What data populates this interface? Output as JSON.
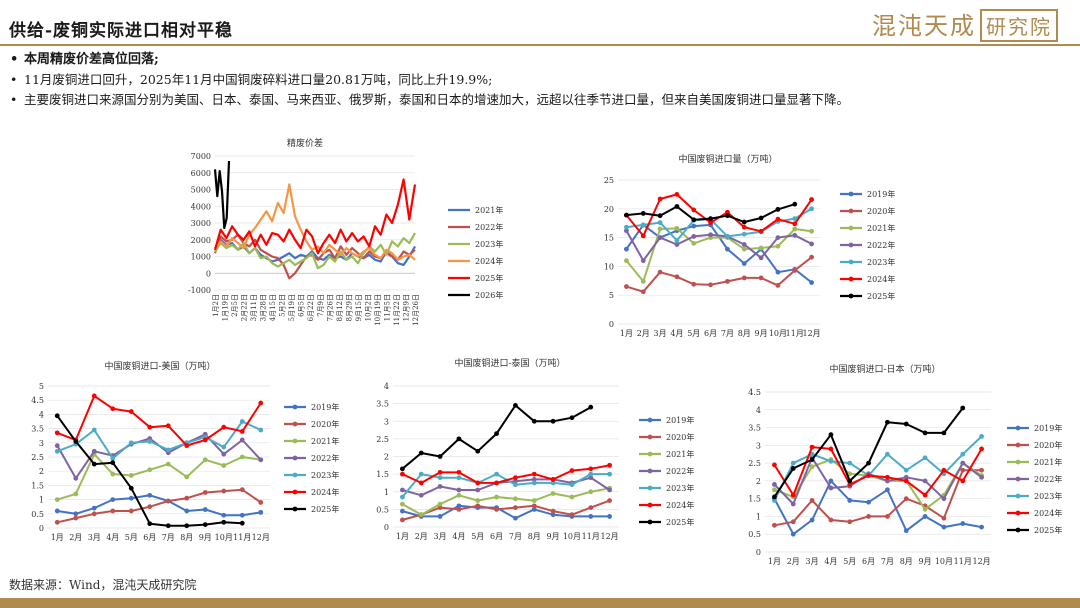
{
  "page": {
    "title": "供给-废铜实际进口相对平稳",
    "logo_text": "混沌天成",
    "logo_box": "研究院",
    "bullets": [
      "本周精废价差高位回落;",
      "11月废铜进口回升，2025年11月中国铜废碎料进口量20.81万吨，同比上升19.9%;",
      "主要废铜进口来源国分别为美国、日本、泰国、马来西亚、俄罗斯，泰国和日本的增速加大，远超以往季节进口量，但来自美国废铜进口量显著下降。"
    ],
    "source": "数据来源：Wind，混沌天成研究院"
  },
  "colors": {
    "brand": "#b08a4e"
  },
  "chart_data": [
    {
      "id": "spread",
      "type": "line",
      "title": "精废价差",
      "ylim": [
        -1000,
        7000
      ],
      "yticks": [
        -1000,
        0,
        1000,
        2000,
        3000,
        4000,
        5000,
        6000,
        7000
      ],
      "xlabels": [
        "1月2日",
        "1月19日",
        "2月5日",
        "2月22日",
        "3月11日",
        "3月28日",
        "4月15日",
        "5月2日",
        "5月19日",
        "6月5日",
        "6月22日",
        "7月9日",
        "7月26日",
        "8月12日",
        "8月29日",
        "9月15日",
        "10月2日",
        "10月19日",
        "11月5日",
        "11月22日",
        "12月9日",
        "12月26日"
      ],
      "series": [
        {
          "name": "2021年",
          "color": "#4472c4",
          "values": [
            1500,
            2000,
            1700,
            1800,
            1400,
            1600,
            1200,
            1500,
            1100,
            900,
            700,
            800,
            1000,
            1200,
            900,
            1100,
            1000,
            1300,
            900,
            800,
            1100,
            900,
            1000,
            800,
            1200,
            1000,
            900,
            1100,
            800,
            700,
            1300,
            1000,
            600,
            500,
            1000,
            1600
          ]
        },
        {
          "name": "2022年",
          "color": "#c0504d",
          "values": [
            1200,
            2200,
            1900,
            2000,
            2300,
            1800,
            1600,
            2000,
            1400,
            1200,
            1000,
            900,
            500,
            -300,
            0,
            500,
            1000,
            1100,
            800,
            1200,
            1400,
            900,
            1600,
            1100,
            1500,
            1200,
            900,
            1300,
            1000,
            900,
            1200,
            1000,
            800,
            1300,
            1100,
            1400
          ]
        },
        {
          "name": "2023年",
          "color": "#9bbb59",
          "values": [
            1300,
            1800,
            1500,
            1700,
            1400,
            1800,
            1200,
            1500,
            900,
            1000,
            600,
            400,
            600,
            800,
            500,
            700,
            900,
            1200,
            300,
            500,
            1000,
            700,
            1300,
            800,
            1000,
            600,
            1200,
            1600,
            1300,
            1700,
            1100,
            1900,
            1600,
            2100,
            1800,
            2400
          ]
        },
        {
          "name": "2024年",
          "color": "#f79646",
          "values": [
            1500,
            1900,
            1600,
            2100,
            1800,
            1500,
            2300,
            2700,
            3200,
            3700,
            3100,
            4200,
            3600,
            5300,
            3400,
            2600,
            1900,
            1400,
            1600,
            1200,
            1700,
            1400,
            1100,
            1500,
            1200,
            1000,
            1300,
            1500,
            1100,
            900,
            1400,
            1200,
            800,
            1000,
            1100,
            800
          ]
        },
        {
          "name": "2025年",
          "color": "#ff0000",
          "values": [
            1400,
            2600,
            2100,
            2800,
            2300,
            2000,
            2500,
            1600,
            2300,
            1700,
            2400,
            2300,
            1900,
            2600,
            2000,
            1500,
            2600,
            2200,
            1200,
            1800,
            2300,
            1800,
            2600,
            1900,
            2400,
            1900,
            2200,
            1600,
            2800,
            2300,
            3500,
            3000,
            4100,
            5600,
            3200,
            5300
          ]
        },
        {
          "name": "2026年",
          "color": "#000000",
          "values": [
            6200,
            4600,
            6100,
            4900,
            2700,
            3300,
            6700
          ]
        }
      ]
    },
    {
      "id": "total",
      "type": "line",
      "title": "中国废铜进口量（万吨）",
      "ylim": [
        0,
        25
      ],
      "yticks": [
        0,
        5,
        10,
        15,
        20,
        25
      ],
      "categories": [
        "1月",
        "2月",
        "3月",
        "4月",
        "5月",
        "6月",
        "7月",
        "8月",
        "9月",
        "10月",
        "11月",
        "12月"
      ],
      "series": [
        {
          "name": "2019年",
          "color": "#4472c4",
          "values": [
            13,
            17.2,
            15,
            16.2,
            17,
            17.2,
            13,
            10.5,
            13,
            9,
            9.5,
            7.2
          ]
        },
        {
          "name": "2020年",
          "color": "#c0504d",
          "values": [
            6.5,
            5.6,
            9,
            8.2,
            6.9,
            6.8,
            7.4,
            8,
            8,
            6.7,
            9.3,
            11.6
          ]
        },
        {
          "name": "2021年",
          "color": "#9bbb59",
          "values": [
            11,
            7.4,
            16.5,
            16.6,
            14,
            15,
            15,
            13,
            13.2,
            13.5,
            16.5,
            16.1
          ]
        },
        {
          "name": "2022年",
          "color": "#8064a2",
          "values": [
            16.2,
            11,
            15,
            13.8,
            15.2,
            15.5,
            15.2,
            13.8,
            11.5,
            15,
            15.4,
            13.9
          ]
        },
        {
          "name": "2023年",
          "color": "#4bacc6",
          "values": [
            16.8,
            17.2,
            17.6,
            14.5,
            18,
            18.2,
            15.2,
            15.6,
            16,
            17.8,
            18.3,
            20
          ]
        },
        {
          "name": "2024年",
          "color": "#ff0000",
          "values": [
            18.9,
            15.3,
            21.7,
            22.5,
            19.8,
            17.6,
            19.4,
            16.8,
            16.1,
            18.2,
            17.4,
            21.6
          ]
        },
        {
          "name": "2025年",
          "color": "#000000",
          "values": [
            18.9,
            19.2,
            18.8,
            20.4,
            18.1,
            18.3,
            18.8,
            17.7,
            18.4,
            19.9,
            20.8,
            null
          ]
        }
      ]
    },
    {
      "id": "usa",
      "type": "line",
      "title": "中国废铜进口-美国（万吨）",
      "ylim": [
        0,
        5
      ],
      "yticks": [
        0,
        0.5,
        1,
        1.5,
        2,
        2.5,
        3,
        3.5,
        4,
        4.5,
        5
      ],
      "categories": [
        "1月",
        "2月",
        "3月",
        "4月",
        "5月",
        "6月",
        "7月",
        "8月",
        "9月",
        "10月",
        "11月",
        "12月"
      ],
      "series": [
        {
          "name": "2019年",
          "color": "#4472c4",
          "values": [
            0.6,
            0.5,
            0.7,
            1.0,
            1.05,
            1.15,
            0.95,
            0.6,
            0.65,
            0.45,
            0.45,
            0.55
          ]
        },
        {
          "name": "2020年",
          "color": "#c0504d",
          "values": [
            0.2,
            0.35,
            0.5,
            0.6,
            0.6,
            0.75,
            0.95,
            1.05,
            1.25,
            1.3,
            1.35,
            0.9
          ]
        },
        {
          "name": "2021年",
          "color": "#9bbb59",
          "values": [
            1.0,
            1.2,
            2.6,
            1.9,
            1.85,
            2.05,
            2.25,
            1.8,
            2.4,
            2.2,
            2.5,
            2.4
          ]
        },
        {
          "name": "2022年",
          "color": "#8064a2",
          "values": [
            2.9,
            1.75,
            2.7,
            2.55,
            2.95,
            3.15,
            2.65,
            3.0,
            3.3,
            2.6,
            3.1,
            2.4
          ]
        },
        {
          "name": "2023年",
          "color": "#4bacc6",
          "values": [
            2.7,
            2.95,
            3.45,
            2.45,
            3.0,
            3.05,
            2.75,
            3.0,
            3.2,
            2.85,
            3.75,
            3.45
          ]
        },
        {
          "name": "2024年",
          "color": "#ff0000",
          "values": [
            3.35,
            3.1,
            4.65,
            4.2,
            4.1,
            3.55,
            3.6,
            2.9,
            3.1,
            3.55,
            3.4,
            4.4
          ]
        },
        {
          "name": "2025年",
          "color": "#000000",
          "values": [
            3.95,
            3.05,
            2.25,
            2.3,
            1.4,
            0.15,
            0.08,
            0.08,
            0.12,
            0.2,
            0.17,
            null
          ]
        }
      ]
    },
    {
      "id": "thailand",
      "type": "line",
      "title": "中国废铜进口-泰国（万吨）",
      "ylim": [
        0,
        4
      ],
      "yticks": [
        0,
        0.5,
        1,
        1.5,
        2,
        2.5,
        3,
        3.5,
        4
      ],
      "categories": [
        "1月",
        "2月",
        "3月",
        "4月",
        "5月",
        "6月",
        "7月",
        "8月",
        "9月",
        "10月",
        "11月",
        "12月"
      ],
      "series": [
        {
          "name": "2019年",
          "color": "#4472c4",
          "values": [
            0.45,
            0.3,
            0.3,
            0.6,
            0.55,
            0.55,
            0.25,
            0.5,
            0.35,
            0.3,
            0.3,
            0.3
          ]
        },
        {
          "name": "2020年",
          "color": "#c0504d",
          "values": [
            0.2,
            0.35,
            0.55,
            0.5,
            0.6,
            0.5,
            0.55,
            0.6,
            0.45,
            0.35,
            0.55,
            0.75
          ]
        },
        {
          "name": "2021年",
          "color": "#9bbb59",
          "values": [
            0.65,
            0.35,
            0.65,
            0.9,
            0.75,
            0.85,
            0.8,
            0.75,
            0.95,
            0.85,
            1.0,
            1.1
          ]
        },
        {
          "name": "2022年",
          "color": "#8064a2",
          "values": [
            1.05,
            0.9,
            1.15,
            1.05,
            1.05,
            1.25,
            1.3,
            1.35,
            1.35,
            1.25,
            1.4,
            1.05
          ]
        },
        {
          "name": "2023年",
          "color": "#4bacc6",
          "values": [
            0.85,
            1.5,
            1.4,
            1.4,
            1.25,
            1.5,
            1.2,
            1.25,
            1.25,
            1.2,
            1.5,
            1.5
          ]
        },
        {
          "name": "2024年",
          "color": "#ff0000",
          "values": [
            1.5,
            1.25,
            1.55,
            1.55,
            1.25,
            1.25,
            1.4,
            1.5,
            1.35,
            1.6,
            1.65,
            1.75
          ]
        },
        {
          "name": "2025年",
          "color": "#000000",
          "values": [
            1.65,
            2.1,
            2.0,
            2.5,
            2.15,
            2.65,
            3.45,
            3.0,
            3.0,
            3.1,
            3.4,
            null
          ]
        }
      ]
    },
    {
      "id": "japan",
      "type": "line",
      "title": "中国废铜进口-日本（万吨）",
      "ylim": [
        0,
        4.5
      ],
      "yticks": [
        0,
        0.5,
        1,
        1.5,
        2,
        2.5,
        3,
        3.5,
        4,
        4.5
      ],
      "categories": [
        "1月",
        "2月",
        "3月",
        "4月",
        "5月",
        "6月",
        "7月",
        "8月",
        "9月",
        "10月",
        "11月",
        "12月"
      ],
      "series": [
        {
          "name": "2019年",
          "color": "#4472c4",
          "values": [
            1.5,
            0.5,
            0.9,
            2.0,
            1.45,
            1.4,
            1.75,
            0.6,
            1.0,
            0.7,
            0.8,
            0.7
          ]
        },
        {
          "name": "2020年",
          "color": "#c0504d",
          "values": [
            0.75,
            0.85,
            1.45,
            0.9,
            0.85,
            1.0,
            1.0,
            1.5,
            1.3,
            0.95,
            2.3,
            2.3
          ]
        },
        {
          "name": "2021年",
          "color": "#9bbb59",
          "values": [
            1.75,
            1.55,
            2.4,
            2.6,
            2.2,
            2.15,
            2.0,
            2.0,
            1.2,
            1.6,
            2.5,
            2.15
          ]
        },
        {
          "name": "2022年",
          "color": "#8064a2",
          "values": [
            1.9,
            1.35,
            2.65,
            1.8,
            1.85,
            2.2,
            2.0,
            2.1,
            2.0,
            1.5,
            2.5,
            2.1
          ]
        },
        {
          "name": "2023年",
          "color": "#4bacc6",
          "values": [
            1.45,
            2.5,
            2.75,
            2.55,
            2.5,
            2.15,
            2.75,
            2.3,
            2.65,
            2.2,
            2.75,
            3.25
          ]
        },
        {
          "name": "2024年",
          "color": "#ff0000",
          "values": [
            2.45,
            1.6,
            2.95,
            2.9,
            1.9,
            2.15,
            2.1,
            2.0,
            1.6,
            2.3,
            2.0,
            2.9
          ]
        },
        {
          "name": "2025年",
          "color": "#000000",
          "values": [
            1.55,
            2.35,
            2.6,
            3.3,
            2.0,
            2.5,
            3.65,
            3.6,
            3.35,
            3.35,
            4.05,
            null
          ]
        }
      ]
    }
  ]
}
